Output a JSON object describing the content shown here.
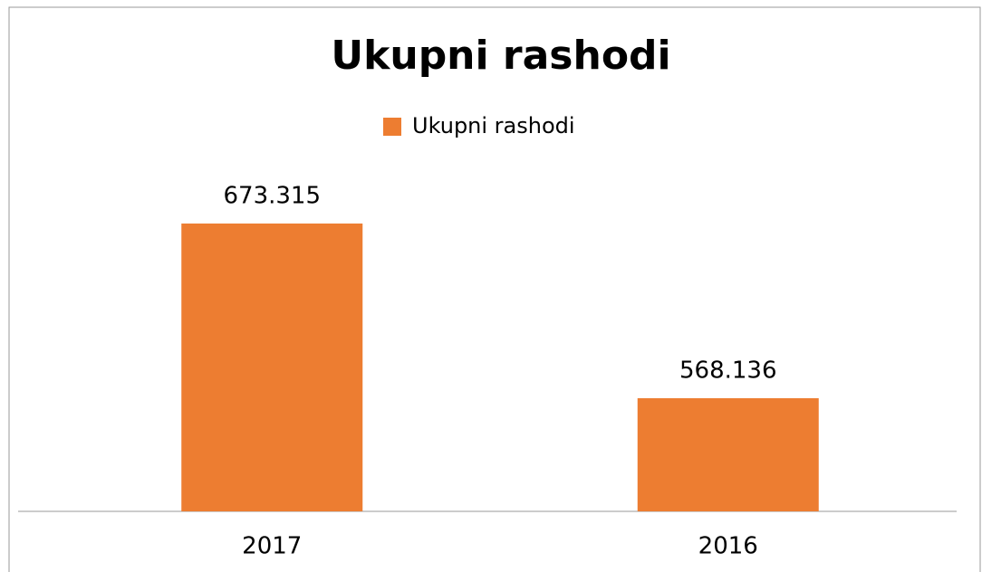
{
  "chart_data": {
    "type": "bar",
    "title": "Ukupni rashodi",
    "categories": [
      "2017",
      "2016"
    ],
    "series": [
      {
        "name": "Ukupni rashodi",
        "color": "#ed7d31",
        "values": [
          673315,
          568136
        ],
        "value_labels": [
          "673.315",
          "568.136"
        ]
      }
    ],
    "ylim": [
      500000,
      700000
    ],
    "legend": "top"
  }
}
